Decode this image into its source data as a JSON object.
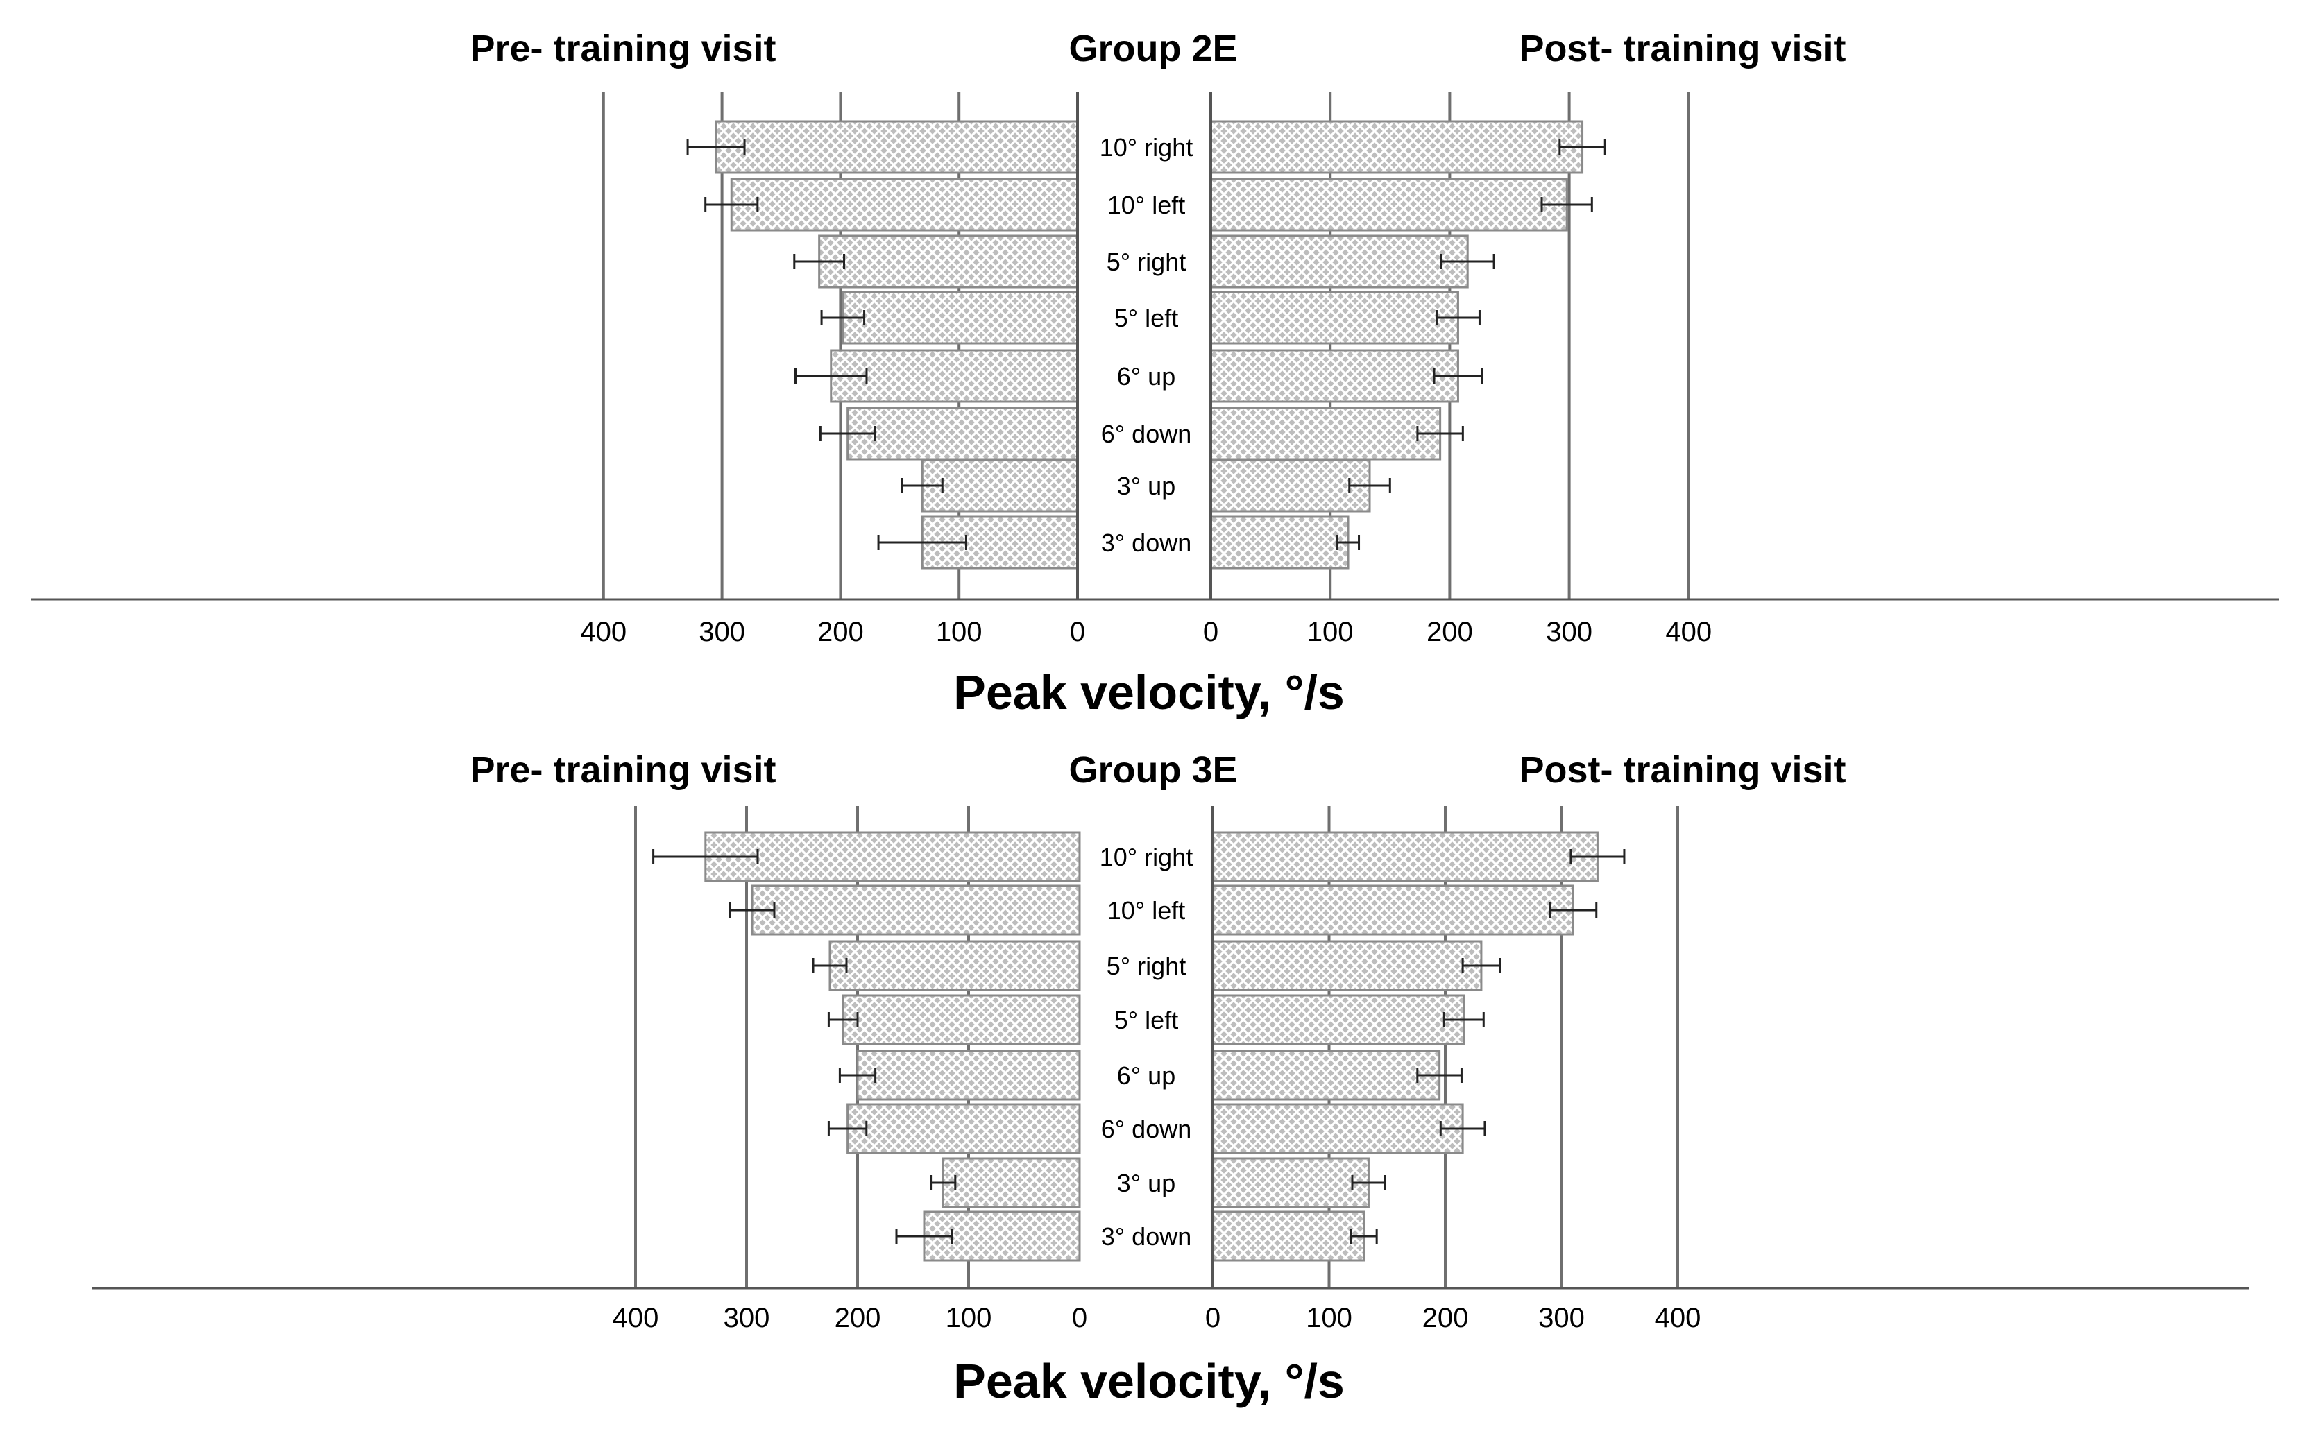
{
  "chart_data": [
    {
      "type": "bar",
      "group_title": "Group 2E",
      "left_title": "Pre- training visit",
      "right_title": "Post- training visit",
      "xlabel": "Peak velocity, °/s",
      "xlim": [
        0,
        400
      ],
      "left_ticks": [
        "400",
        "300",
        "200",
        "100",
        "0"
      ],
      "right_ticks": [
        "0",
        "100",
        "200",
        "300",
        "400"
      ],
      "categories": [
        "10° right",
        "10° left",
        "5° right",
        "5° left",
        "6° up",
        "6° down",
        "3° up",
        "3° down"
      ],
      "series": [
        {
          "name": "Pre- training visit",
          "values": [
            305,
            292,
            218,
            198,
            208,
            194,
            131,
            131
          ],
          "error": [
            24,
            22,
            21,
            18,
            30,
            23,
            17,
            37
          ]
        },
        {
          "name": "Post- training visit",
          "values": [
            311,
            298,
            215,
            207,
            207,
            192,
            133,
            115
          ],
          "error": [
            19,
            21,
            22,
            18,
            20,
            19,
            17,
            9
          ]
        }
      ]
    },
    {
      "type": "bar",
      "group_title": "Group 3E",
      "left_title": "Pre- training visit",
      "right_title": "Post- training visit",
      "xlabel": "Peak velocity, °/s",
      "xlim": [
        0,
        400
      ],
      "left_ticks": [
        "400",
        "300",
        "200",
        "100",
        "0"
      ],
      "right_ticks": [
        "0",
        "100",
        "200",
        "300",
        "400"
      ],
      "categories": [
        "10° right",
        "10° left",
        "5° right",
        "5° left",
        "6° up",
        "6° down",
        "3° up",
        "3° down"
      ],
      "series": [
        {
          "name": "Pre- training visit",
          "values": [
            337,
            295,
            225,
            213,
            200,
            209,
            123,
            140
          ],
          "error": [
            47,
            20,
            15,
            13,
            16,
            17,
            11,
            25
          ]
        },
        {
          "name": "Post- training visit",
          "values": [
            331,
            310,
            231,
            216,
            195,
            215,
            134,
            130
          ],
          "error": [
            23,
            20,
            16,
            17,
            19,
            19,
            14,
            11
          ]
        }
      ]
    }
  ]
}
